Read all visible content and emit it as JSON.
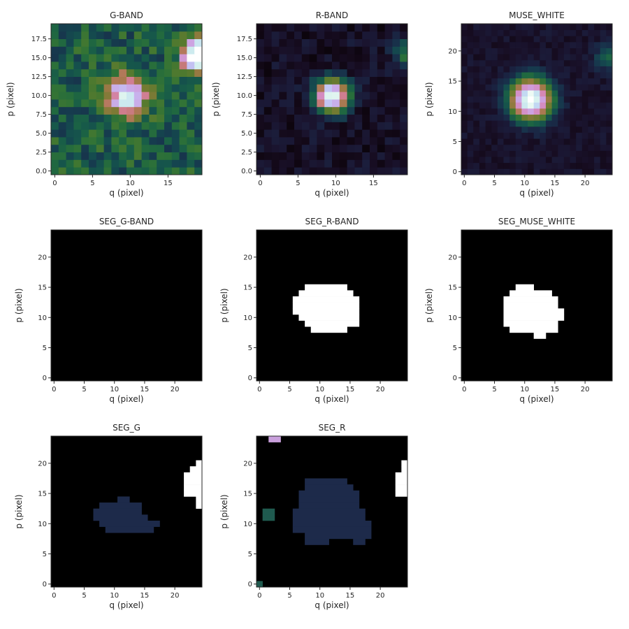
{
  "figure": {
    "panels": [
      "G-BAND",
      "R-BAND",
      "MUSE_WHITE",
      "SEG_G-BAND",
      "SEG_R-BAND",
      "SEG_MUSE_WHITE",
      "SEG_G",
      "SEG_R"
    ]
  },
  "chart_data": [
    {
      "type": "heatmap",
      "title": "G-BAND",
      "xlabel": "q (pixel)",
      "ylabel": "p (pixel)",
      "xlim": [
        -0.5,
        19.5
      ],
      "ylim": [
        -0.5,
        19.5
      ],
      "xticks": [
        0,
        5,
        10,
        15
      ],
      "yticks": [
        0.0,
        2.5,
        5.0,
        7.5,
        10.0,
        12.5,
        15.0,
        17.5
      ],
      "yticks_decimals": 1,
      "colormap": "cubehelix",
      "grid_size": [
        20,
        20
      ],
      "description": "noisy background with a faint source near (9.5, 10) and bright source at top-right corner",
      "sources": [
        {
          "center": [
            9.5,
            10.0
          ],
          "peak": 0.62,
          "sigma": 1.8
        },
        {
          "center": [
            19.0,
            15.5
          ],
          "peak": 0.95,
          "sigma": 1.4
        }
      ],
      "background": {
        "mean": 0.28,
        "noise": 0.1
      }
    },
    {
      "type": "heatmap",
      "title": "R-BAND",
      "xlabel": "q (pixel)",
      "ylabel": "p (pixel)",
      "xlim": [
        -0.5,
        19.5
      ],
      "ylim": [
        -0.5,
        19.5
      ],
      "xticks": [
        0,
        5,
        10,
        15
      ],
      "yticks": [
        0.0,
        2.5,
        5.0,
        7.5,
        10.0,
        12.5,
        15.0,
        17.5
      ],
      "yticks_decimals": 1,
      "colormap": "cubehelix",
      "grid_size": [
        20,
        20
      ],
      "sources": [
        {
          "center": [
            9.5,
            10.0
          ],
          "peak": 0.92,
          "sigma": 1.5
        },
        {
          "center": [
            19.2,
            15.5
          ],
          "peak": 0.25,
          "sigma": 1.2
        }
      ],
      "background": {
        "mean": 0.08,
        "noise": 0.05
      }
    },
    {
      "type": "heatmap",
      "title": "MUSE_WHITE",
      "xlabel": "q (pixel)",
      "ylabel": "p (pixel)",
      "xlim": [
        -0.5,
        24.5
      ],
      "ylim": [
        -0.5,
        24.5
      ],
      "xticks": [
        0,
        5,
        10,
        15,
        20
      ],
      "yticks": [
        0,
        5,
        10,
        15,
        20
      ],
      "yticks_decimals": 0,
      "colormap": "cubehelix",
      "grid_size": [
        25,
        25
      ],
      "sources": [
        {
          "center": [
            11.0,
            12.0
          ],
          "peak": 0.93,
          "sigma": 2.3
        },
        {
          "center": [
            24.0,
            19.0
          ],
          "peak": 0.22,
          "sigma": 1.5
        }
      ],
      "background": {
        "mean": 0.09,
        "noise": 0.03
      }
    },
    {
      "type": "heatmap",
      "title": "SEG_G-BAND",
      "xlabel": "q (pixel)",
      "ylabel": "p (pixel)",
      "xlim": [
        -0.5,
        24.5
      ],
      "ylim": [
        -0.5,
        24.5
      ],
      "xticks": [
        0,
        5,
        10,
        15,
        20
      ],
      "yticks": [
        0,
        5,
        10,
        15,
        20
      ],
      "yticks_decimals": 0,
      "colormap": "binary_mask",
      "grid_size": [
        25,
        25
      ],
      "regions": []
    },
    {
      "type": "heatmap",
      "title": "SEG_R-BAND",
      "xlabel": "q (pixel)",
      "ylabel": "p (pixel)",
      "xlim": [
        -0.5,
        24.5
      ],
      "ylim": [
        -0.5,
        24.5
      ],
      "xticks": [
        0,
        5,
        10,
        15,
        20
      ],
      "yticks": [
        0,
        5,
        10,
        15,
        20
      ],
      "yticks_decimals": 0,
      "colormap": "binary_mask",
      "grid_size": [
        25,
        25
      ],
      "regions": [
        {
          "value": 1,
          "color": "#ffffff",
          "rows": [
            [
              8,
              9,
              14
            ],
            [
              9,
              8,
              16
            ],
            [
              10,
              7,
              16
            ],
            [
              11,
              6,
              16
            ],
            [
              12,
              6,
              16
            ],
            [
              13,
              6,
              16
            ],
            [
              14,
              7,
              15
            ],
            [
              15,
              8,
              14
            ]
          ]
        }
      ]
    },
    {
      "type": "heatmap",
      "title": "SEG_MUSE_WHITE",
      "xlabel": "q (pixel)",
      "ylabel": "p (pixel)",
      "xlim": [
        -0.5,
        24.5
      ],
      "ylim": [
        -0.5,
        24.5
      ],
      "xticks": [
        0,
        5,
        10,
        15,
        20
      ],
      "yticks": [
        0,
        5,
        10,
        15,
        20
      ],
      "yticks_decimals": 0,
      "colormap": "binary_mask",
      "grid_size": [
        25,
        25
      ],
      "regions": [
        {
          "value": 1,
          "color": "#ffffff",
          "rows": [
            [
              7,
              12,
              13
            ],
            [
              8,
              8,
              15
            ],
            [
              9,
              7,
              15
            ],
            [
              10,
              7,
              16
            ],
            [
              11,
              7,
              16
            ],
            [
              12,
              7,
              15
            ],
            [
              13,
              7,
              15
            ],
            [
              14,
              8,
              14
            ],
            [
              15,
              9,
              11
            ]
          ]
        }
      ]
    },
    {
      "type": "heatmap",
      "title": "SEG_G",
      "xlabel": "q (pixel)",
      "ylabel": "p (pixel)",
      "xlim": [
        -0.5,
        24.5
      ],
      "ylim": [
        -0.5,
        24.5
      ],
      "xticks": [
        0,
        5,
        10,
        15,
        20
      ],
      "yticks": [
        0,
        5,
        10,
        15,
        20
      ],
      "yticks_decimals": 0,
      "colormap": "segmentation",
      "grid_size": [
        25,
        25
      ],
      "regions": [
        {
          "value": 1,
          "color": "#1d2a4a",
          "rows": [
            [
              9,
              9,
              16
            ],
            [
              10,
              8,
              17
            ],
            [
              11,
              7,
              15
            ],
            [
              12,
              7,
              14
            ],
            [
              13,
              8,
              14
            ],
            [
              14,
              11,
              12
            ]
          ]
        },
        {
          "value": 2,
          "color": "#ffffff",
          "rows": [
            [
              13,
              24,
              24
            ],
            [
              14,
              24,
              24
            ],
            [
              15,
              22,
              24
            ],
            [
              16,
              22,
              24
            ],
            [
              17,
              22,
              24
            ],
            [
              18,
              22,
              24
            ],
            [
              19,
              23,
              24
            ],
            [
              20,
              24,
              24
            ]
          ]
        }
      ]
    },
    {
      "type": "heatmap",
      "title": "SEG_R",
      "xlabel": "q (pixel)",
      "ylabel": "p (pixel)",
      "xlim": [
        -0.5,
        24.5
      ],
      "ylim": [
        -0.5,
        24.5
      ],
      "xticks": [
        0,
        5,
        10,
        15,
        20
      ],
      "yticks": [
        0,
        5,
        10,
        15,
        20
      ],
      "yticks_decimals": 0,
      "colormap": "segmentation",
      "grid_size": [
        25,
        25
      ],
      "regions": [
        {
          "value": 1,
          "color": "#1d2a4a",
          "rows": [
            [
              7,
              8,
              11
            ],
            [
              7,
              16,
              17
            ],
            [
              8,
              8,
              18
            ],
            [
              9,
              6,
              18
            ],
            [
              10,
              6,
              18
            ],
            [
              11,
              6,
              17
            ],
            [
              12,
              6,
              17
            ],
            [
              13,
              7,
              16
            ],
            [
              14,
              7,
              16
            ],
            [
              15,
              7,
              16
            ],
            [
              16,
              8,
              15
            ],
            [
              17,
              8,
              14
            ]
          ]
        },
        {
          "value": 2,
          "color": "#1f5a4f",
          "rows": [
            [
              11,
              1,
              2
            ],
            [
              12,
              1,
              2
            ]
          ]
        },
        {
          "value": 3,
          "color": "#1f5a4f",
          "rows": [
            [
              0,
              0,
              0
            ]
          ]
        },
        {
          "value": 4,
          "color": "#ffffff",
          "rows": [
            [
              15,
              23,
              24
            ],
            [
              16,
              23,
              24
            ],
            [
              17,
              23,
              24
            ],
            [
              18,
              23,
              24
            ],
            [
              19,
              24,
              24
            ],
            [
              20,
              24,
              24
            ]
          ]
        },
        {
          "value": 5,
          "color": "#c9a0dc",
          "rows": [
            [
              24,
              2,
              3
            ]
          ]
        }
      ]
    }
  ]
}
